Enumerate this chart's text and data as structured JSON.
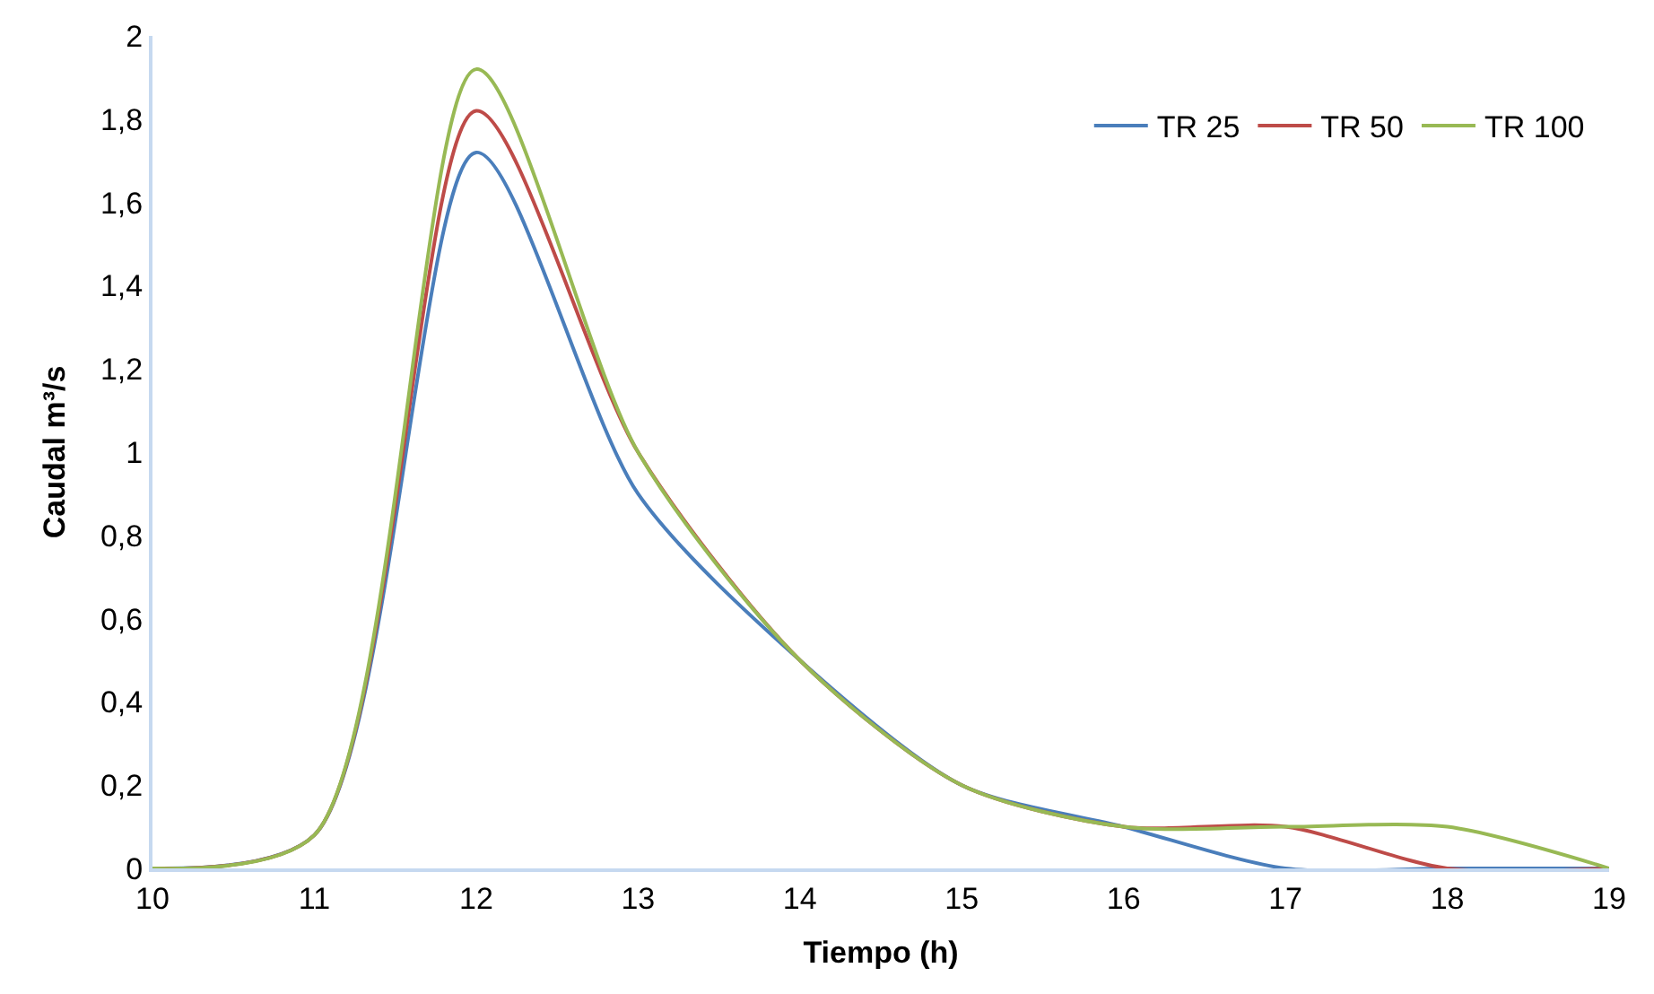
{
  "chart_data": {
    "type": "line",
    "xlabel": "Tiempo (h)",
    "ylabel": "Caudal m³/s",
    "x": [
      10,
      11,
      12,
      13,
      14,
      15,
      16,
      17,
      18,
      19
    ],
    "series": [
      {
        "name": "TR 25",
        "color": "#4a7ebb",
        "values": [
          0,
          0.08,
          1.72,
          0.9,
          0.5,
          0.2,
          0.1,
          0,
          0,
          0
        ]
      },
      {
        "name": "TR 50",
        "color": "#be4b48",
        "values": [
          0,
          0.08,
          1.82,
          1.0,
          0.5,
          0.2,
          0.1,
          0.1,
          0,
          0
        ]
      },
      {
        "name": "TR 100",
        "color": "#98b954",
        "values": [
          0,
          0.08,
          1.92,
          1.0,
          0.5,
          0.2,
          0.1,
          0.1,
          0.1,
          0
        ]
      }
    ],
    "xlim": [
      10,
      19
    ],
    "xticks": [
      10,
      11,
      12,
      13,
      14,
      15,
      16,
      17,
      18,
      19
    ],
    "ylim": [
      0,
      2
    ],
    "yticks": [
      0,
      {
        "value": 0.2,
        "label": "0,2"
      },
      {
        "value": 0.4,
        "label": "0,4"
      },
      {
        "value": 0.6,
        "label": "0,6"
      },
      {
        "value": 0.8,
        "label": "0,8"
      },
      1,
      {
        "value": 1.2,
        "label": "1,2"
      },
      {
        "value": 1.4,
        "label": "1,4"
      },
      {
        "value": 1.6,
        "label": "1,6"
      },
      {
        "value": 1.8,
        "label": "1,8"
      },
      2
    ],
    "legend": "top right",
    "marker": "none",
    "line_style": "solid"
  }
}
